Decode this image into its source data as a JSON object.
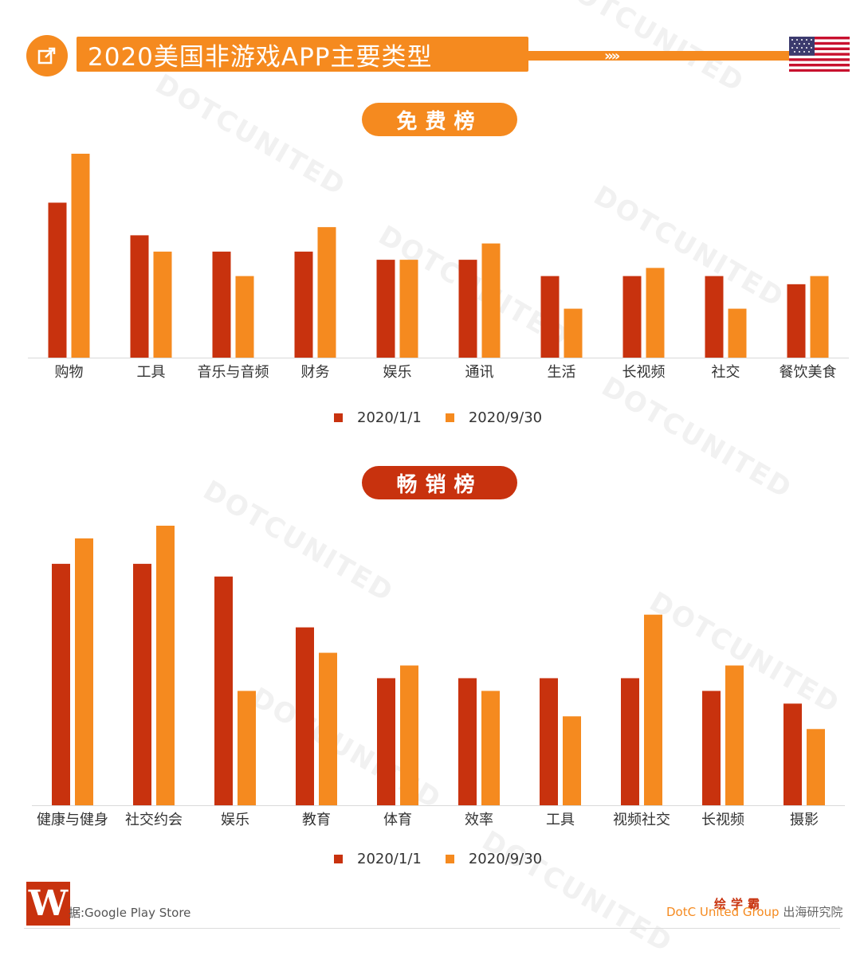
{
  "header": {
    "title": "2020美国非游戏APP主要类型",
    "arrows": "»»"
  },
  "colors": {
    "accent": "#f58a1f",
    "dark": "#c8320e"
  },
  "watermark": "DOTCUNITED",
  "legend": {
    "series1": "2020/1/1",
    "series2": "2020/9/30"
  },
  "chart_data": [
    {
      "type": "bar",
      "title": "免费榜",
      "categories": [
        "购物",
        "工具",
        "音乐与音频",
        "财务",
        "娱乐",
        "通讯",
        "生活",
        "长视频",
        "社交",
        "餐饮美食"
      ],
      "series": [
        {
          "name": "2020/1/1",
          "color": "#c8320e",
          "values": [
            19,
            15,
            13,
            13,
            12,
            12,
            10,
            10,
            10,
            9
          ]
        },
        {
          "name": "2020/9/30",
          "color": "#f58a1f",
          "values": [
            25,
            13,
            10,
            16,
            12,
            14,
            6,
            11,
            6,
            10
          ]
        }
      ],
      "ylim": [
        0,
        25
      ],
      "xlabel": "",
      "ylabel": "",
      "legend": "bottom",
      "grid": false
    },
    {
      "type": "bar",
      "title": "畅销榜",
      "categories": [
        "健康与健身",
        "社交约会",
        "娱乐",
        "教育",
        "体育",
        "效率",
        "工具",
        "视频社交",
        "长视频",
        "摄影"
      ],
      "series": [
        {
          "name": "2020/1/1",
          "color": "#c8320e",
          "values": [
            19,
            19,
            18,
            14,
            10,
            10,
            10,
            10,
            9,
            8
          ]
        },
        {
          "name": "2020/9/30",
          "color": "#f58a1f",
          "values": [
            21,
            22,
            9,
            12,
            11,
            9,
            7,
            15,
            11,
            6
          ]
        }
      ],
      "ylim": [
        0,
        22
      ],
      "xlabel": "",
      "ylabel": "",
      "legend": "bottom",
      "grid": false
    }
  ],
  "footer": {
    "logo_letter": "W",
    "source": "据:Google Play Store",
    "brand": "DotC United Group",
    "brand_cn": "出海研究院",
    "stamp": "绘学霸"
  }
}
